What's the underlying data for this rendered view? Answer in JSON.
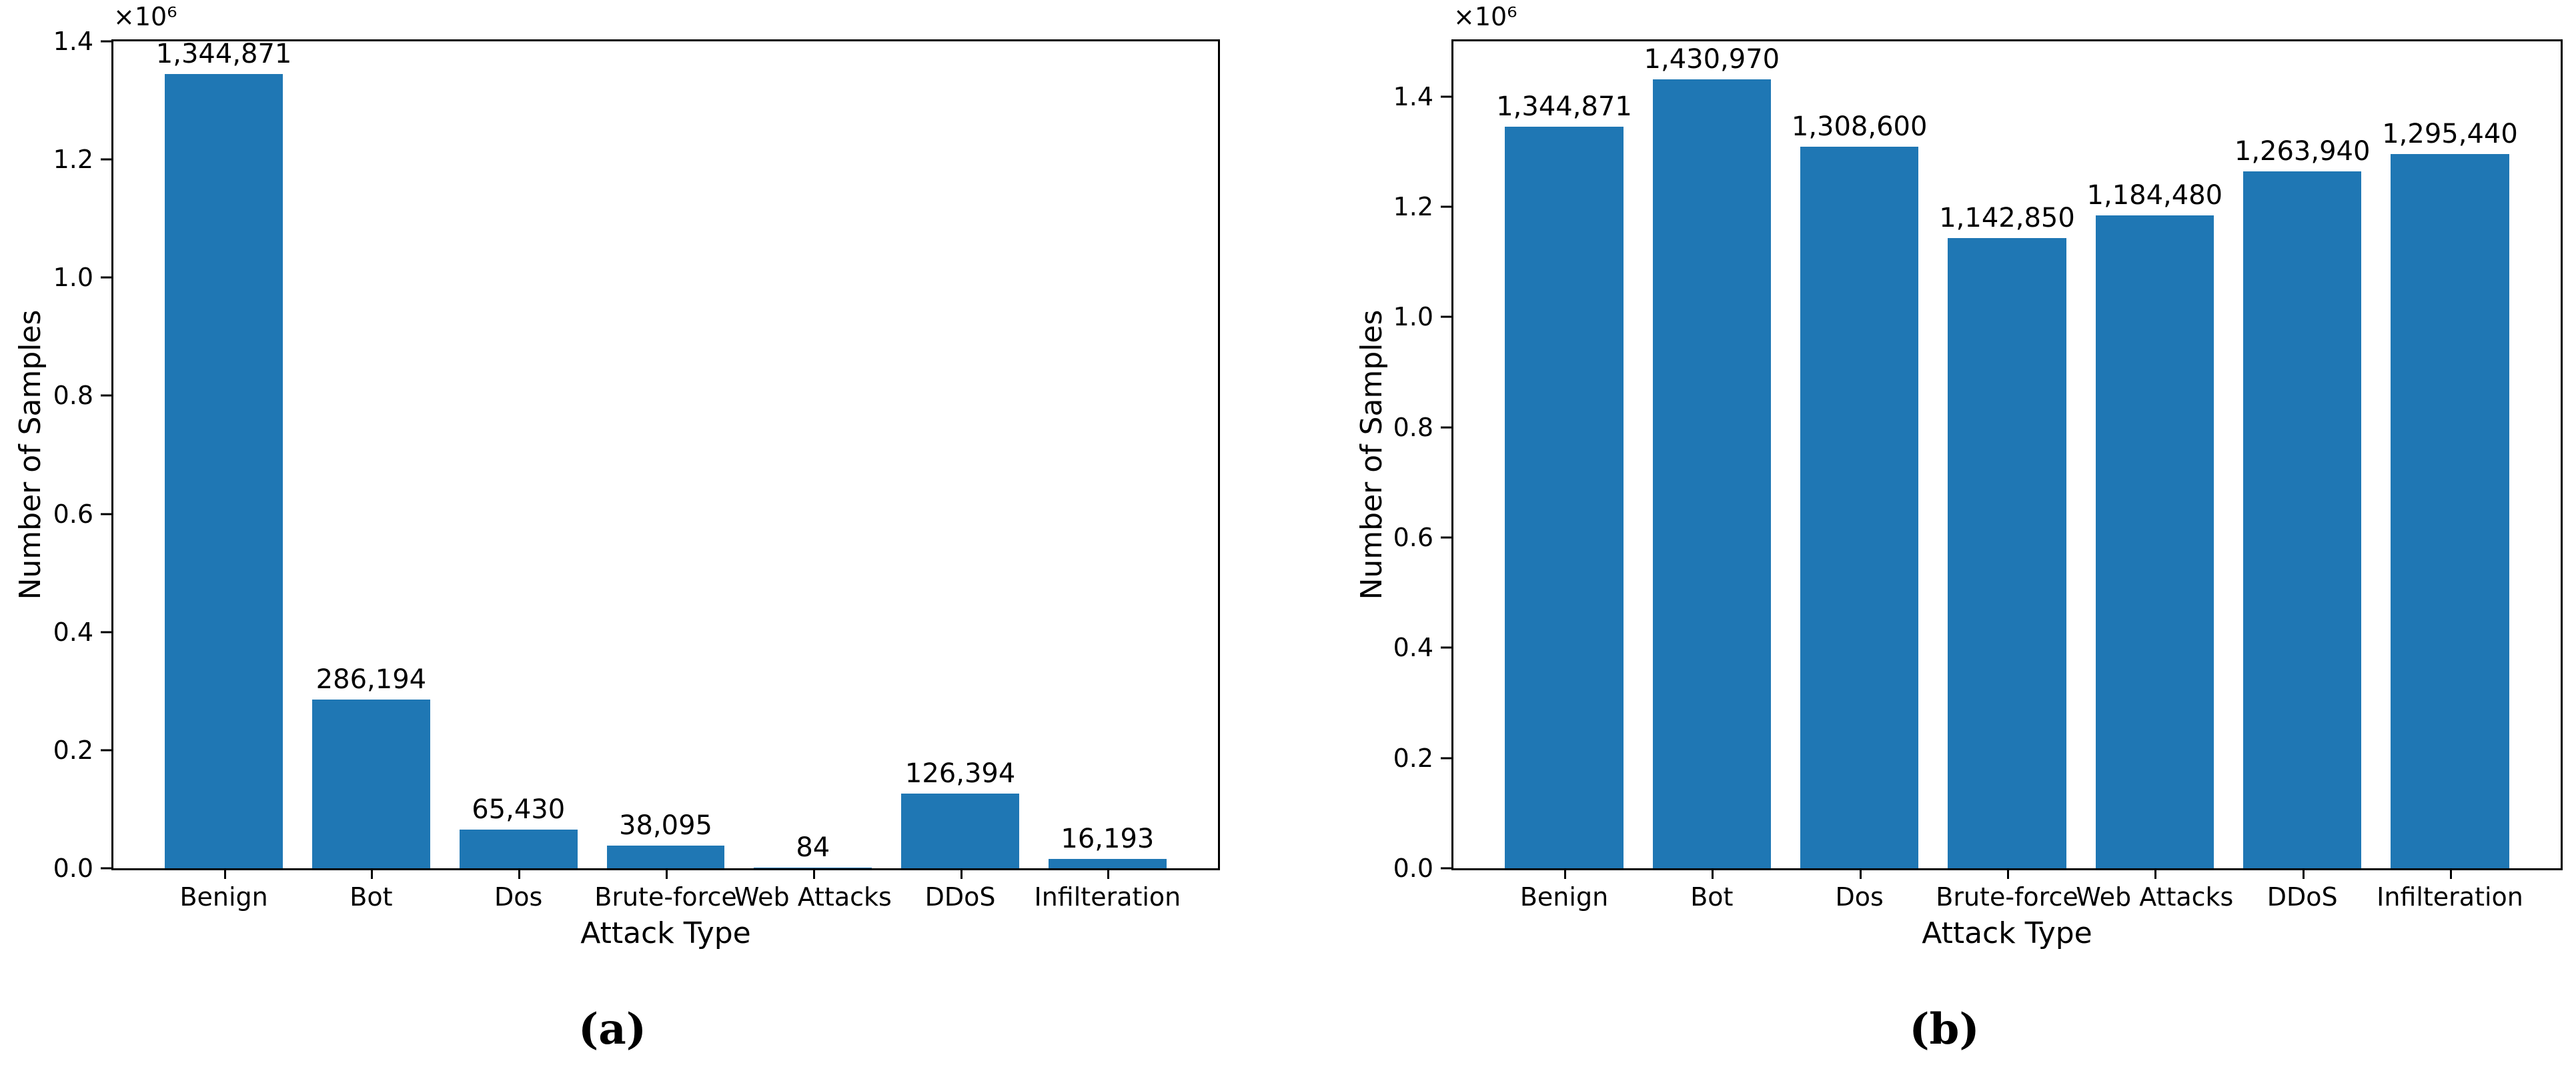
{
  "figure": {
    "background": "#ffffff",
    "text_color": "#000000",
    "axis_color": "#000000"
  },
  "chart_data": [
    {
      "type": "bar",
      "caption": "(a)",
      "title": "",
      "xlabel": "Attack Type",
      "ylabel": "Number of Samples",
      "y_offset_text": "×10⁶",
      "categories": [
        "Benign",
        "Bot",
        "Dos",
        "Brute-force",
        "Web Attacks",
        "DDoS",
        "Infilteration"
      ],
      "values": [
        1344871,
        286194,
        65430,
        38095,
        84,
        126394,
        16193
      ],
      "bar_labels": [
        "1,344,871",
        "286,194",
        "65,430",
        "38,095",
        "84",
        "126,394",
        "16,193"
      ],
      "ylim": [
        0,
        1400000
      ],
      "ytick_values": [
        0,
        200000,
        400000,
        600000,
        800000,
        1000000,
        1200000,
        1400000
      ],
      "ytick_labels": [
        "0.0",
        "0.2",
        "0.4",
        "0.6",
        "0.8",
        "1.0",
        "1.2",
        "1.4"
      ],
      "bar_color": "#1f77b4",
      "grid": false,
      "legend": null
    },
    {
      "type": "bar",
      "caption": "(b)",
      "title": "",
      "xlabel": "Attack Type",
      "ylabel": "Number of Samples",
      "y_offset_text": "×10⁶",
      "categories": [
        "Benign",
        "Bot",
        "Dos",
        "Brute-force",
        "Web Attacks",
        "DDoS",
        "Infilteration"
      ],
      "values": [
        1344871,
        1430970,
        1308600,
        1142850,
        1184480,
        1263940,
        1295440
      ],
      "bar_labels": [
        "1,344,871",
        "1,430,970",
        "1,308,600",
        "1,142,850",
        "1,184,480",
        "1,263,940",
        "1,295,440"
      ],
      "ylim": [
        0,
        1500000
      ],
      "ytick_values": [
        0,
        200000,
        400000,
        600000,
        800000,
        1000000,
        1200000,
        1400000
      ],
      "ytick_labels": [
        "0.0",
        "0.2",
        "0.4",
        "0.6",
        "0.8",
        "1.0",
        "1.2",
        "1.4"
      ],
      "bar_color": "#1f77b4",
      "grid": false,
      "legend": null
    }
  ]
}
